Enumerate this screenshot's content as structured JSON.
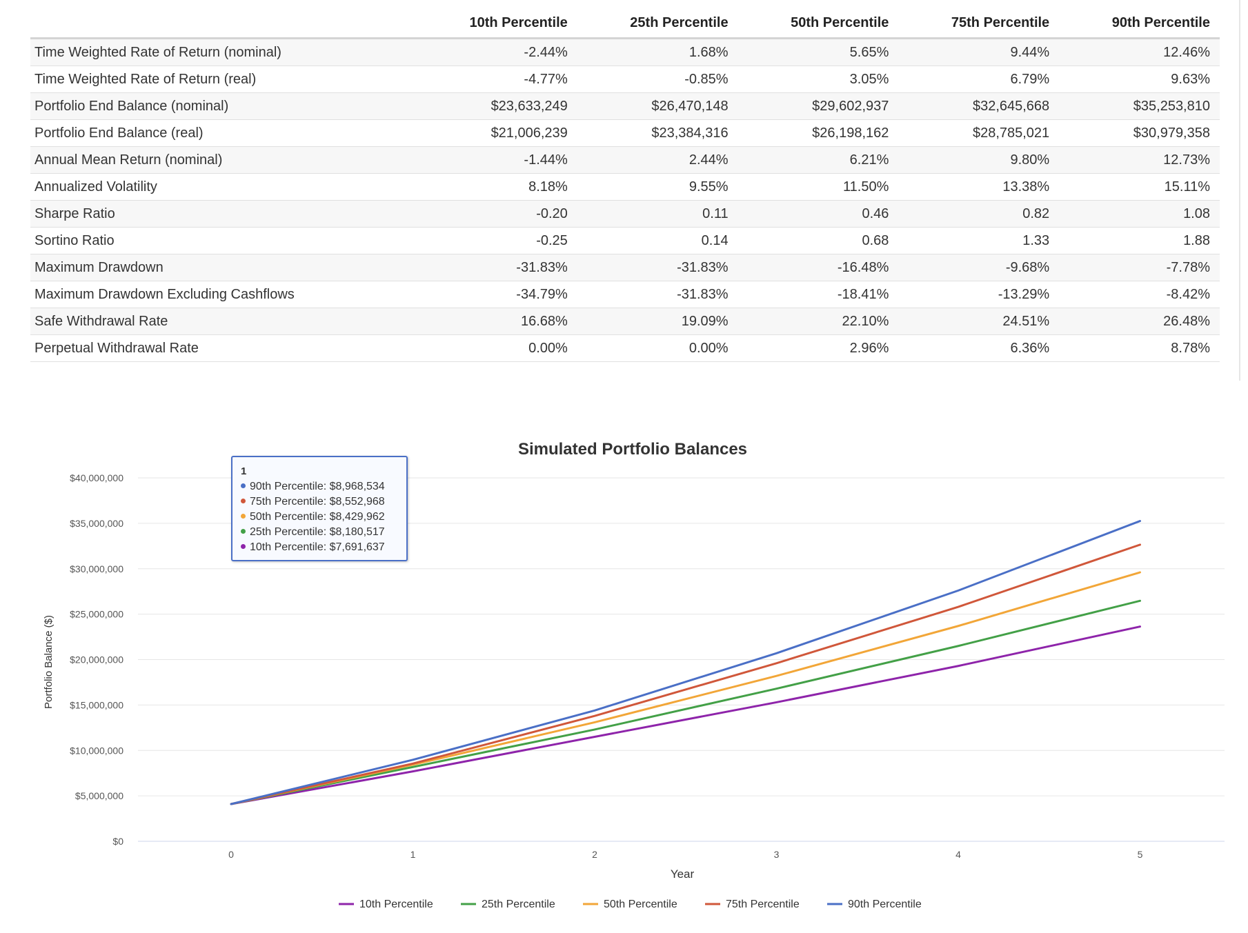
{
  "table": {
    "headers": [
      "",
      "10th Percentile",
      "25th Percentile",
      "50th Percentile",
      "75th Percentile",
      "90th Percentile"
    ],
    "rows": [
      {
        "label": "Time Weighted Rate of Return (nominal)",
        "values": [
          "-2.44%",
          "1.68%",
          "5.65%",
          "9.44%",
          "12.46%"
        ]
      },
      {
        "label": "Time Weighted Rate of Return (real)",
        "values": [
          "-4.77%",
          "-0.85%",
          "3.05%",
          "6.79%",
          "9.63%"
        ]
      },
      {
        "label": "Portfolio End Balance (nominal)",
        "values": [
          "$23,633,249",
          "$26,470,148",
          "$29,602,937",
          "$32,645,668",
          "$35,253,810"
        ]
      },
      {
        "label": "Portfolio End Balance (real)",
        "values": [
          "$21,006,239",
          "$23,384,316",
          "$26,198,162",
          "$28,785,021",
          "$30,979,358"
        ]
      },
      {
        "label": "Annual Mean Return (nominal)",
        "values": [
          "-1.44%",
          "2.44%",
          "6.21%",
          "9.80%",
          "12.73%"
        ]
      },
      {
        "label": "Annualized Volatility",
        "values": [
          "8.18%",
          "9.55%",
          "11.50%",
          "13.38%",
          "15.11%"
        ]
      },
      {
        "label": "Sharpe Ratio",
        "values": [
          "-0.20",
          "0.11",
          "0.46",
          "0.82",
          "1.08"
        ]
      },
      {
        "label": "Sortino Ratio",
        "values": [
          "-0.25",
          "0.14",
          "0.68",
          "1.33",
          "1.88"
        ]
      },
      {
        "label": "Maximum Drawdown",
        "values": [
          "-31.83%",
          "-31.83%",
          "-16.48%",
          "-9.68%",
          "-7.78%"
        ]
      },
      {
        "label": "Maximum Drawdown Excluding Cashflows",
        "values": [
          "-34.79%",
          "-31.83%",
          "-18.41%",
          "-13.29%",
          "-8.42%"
        ]
      },
      {
        "label": "Safe Withdrawal Rate",
        "values": [
          "16.68%",
          "19.09%",
          "22.10%",
          "24.51%",
          "26.48%"
        ]
      },
      {
        "label": "Perpetual Withdrawal Rate",
        "values": [
          "0.00%",
          "0.00%",
          "2.96%",
          "6.36%",
          "8.78%"
        ]
      }
    ]
  },
  "tooltip": {
    "title": "1",
    "rows": [
      {
        "text": "90th Percentile: $8,968,534",
        "color": "#4a6fc6"
      },
      {
        "text": "75th Percentile: $8,552,968",
        "color": "#d0573a"
      },
      {
        "text": "50th Percentile: $8,429,962",
        "color": "#f2a638"
      },
      {
        "text": "25th Percentile: $8,180,517",
        "color": "#43a047"
      },
      {
        "text": "10th Percentile: $7,691,637",
        "color": "#8e24aa"
      }
    ]
  },
  "chart_data": {
    "type": "line",
    "title": "Simulated Portfolio Balances",
    "xlabel": "Year",
    "ylabel": "Portfolio Balance ($)",
    "x": [
      0,
      1,
      2,
      3,
      4,
      5
    ],
    "xlim": [
      -0.5,
      5.5
    ],
    "ylim": [
      0,
      40000000
    ],
    "yticks": [
      0,
      5000000,
      10000000,
      15000000,
      20000000,
      25000000,
      30000000,
      35000000,
      40000000
    ],
    "ytick_labels": [
      "$0",
      "$5,000,000",
      "$10,000,000",
      "$15,000,000",
      "$20,000,000",
      "$25,000,000",
      "$30,000,000",
      "$35,000,000",
      "$40,000,000"
    ],
    "grid": true,
    "legend_position": "bottom",
    "series": [
      {
        "name": "10th Percentile",
        "color": "#8e24aa",
        "values": [
          4100000,
          7691637,
          11500000,
          15300000,
          19300000,
          23633249
        ]
      },
      {
        "name": "25th Percentile",
        "color": "#43a047",
        "values": [
          4100000,
          8180517,
          12300000,
          16800000,
          21500000,
          26470148
        ]
      },
      {
        "name": "50th Percentile",
        "color": "#f2a638",
        "values": [
          4100000,
          8429962,
          13100000,
          18200000,
          23700000,
          29602937
        ]
      },
      {
        "name": "75th Percentile",
        "color": "#d0573a",
        "values": [
          4100000,
          8552968,
          13800000,
          19600000,
          25800000,
          32645668
        ]
      },
      {
        "name": "90th Percentile",
        "color": "#4a6fc6",
        "values": [
          4100000,
          8968534,
          14400000,
          20700000,
          27600000,
          35253810
        ]
      }
    ]
  }
}
